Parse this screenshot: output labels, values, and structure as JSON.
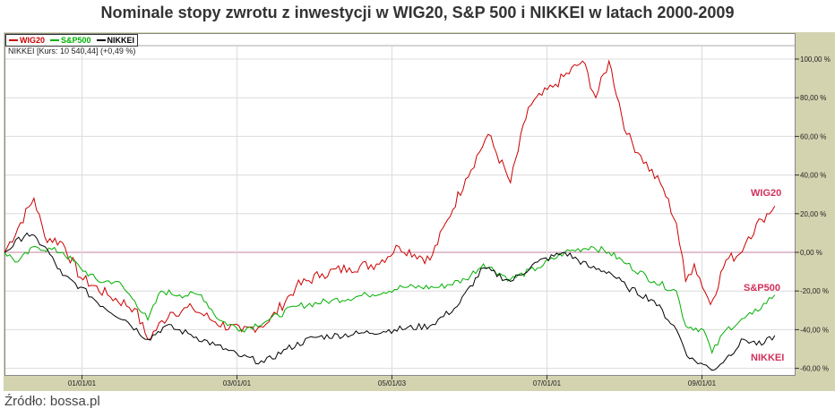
{
  "title": "Nominale stopy zwrotu z inwestycji w WIG20, S&P 500 i NIKKEI w latach 2000-2009",
  "info": "NIKKEI [Kurs: 10 540,44] (+0,49 %)",
  "source": "Źródło: bossa.pl",
  "colors": {
    "WIG20": "#cc0000",
    "S&P500": "#00b000",
    "NIKKEI": "#000000",
    "label": "#d0305a",
    "zero": "#c080a0"
  },
  "chart_data": {
    "type": "line",
    "title": "Nominale stopy zwrotu z inwestycji w WIG20, S&P 500 i NIKKEI w latach 2000-2009",
    "xlabel": "",
    "ylabel": "",
    "ylim": [
      -62,
      106
    ],
    "xlim": [
      2000.0,
      2010.2
    ],
    "yticks": [
      100,
      80,
      60,
      40,
      20,
      0,
      -20,
      -40,
      -60
    ],
    "ytick_labels": [
      "100,00 %",
      "80,00 %",
      "60,00 %",
      "40,00 %",
      "20,00 %",
      "0,00 %",
      "-20,00 %",
      "-40,00 %",
      "-60,00 %"
    ],
    "xticks": [
      2001.0,
      2003.0,
      2005.0,
      2007.0,
      2009.0
    ],
    "xtick_labels": [
      "01/01/01",
      "03/01/01",
      "05/01/03",
      "07/01/01",
      "09/01/01"
    ],
    "legend": [
      "WIG20",
      "S&P500",
      "NIKKEI"
    ],
    "legend_placement": "top-left",
    "grid": true,
    "series": [
      {
        "name": "WIG20",
        "label": "WIG20",
        "x": [
          2000.0,
          2000.38,
          2000.52,
          2000.75,
          2000.98,
          2001.33,
          2001.68,
          2001.85,
          2002.14,
          2002.43,
          2002.72,
          2003.06,
          2003.41,
          2003.76,
          2004.1,
          2004.45,
          2004.8,
          2005.09,
          2005.49,
          2005.72,
          2005.95,
          2006.24,
          2006.53,
          2006.76,
          2007.11,
          2007.46,
          2007.63,
          2007.8,
          2008.03,
          2008.21,
          2008.5,
          2008.67,
          2008.79,
          2008.9,
          2009.11,
          2009.31,
          2009.48,
          2009.6,
          2009.77,
          2009.94
        ],
        "y": [
          0,
          28,
          8,
          5,
          -13,
          -22,
          -29,
          -45,
          -31,
          -29,
          -36,
          -41,
          -36,
          -18,
          -11,
          -8,
          -6,
          3,
          -4,
          17,
          38,
          61,
          36,
          75,
          87,
          99,
          80,
          99,
          61,
          50,
          33,
          15,
          -15,
          -6,
          -27,
          -4,
          -1,
          8,
          17,
          24
        ]
      },
      {
        "name": "S&P500",
        "label": "S&P500",
        "x": [
          2000.0,
          2000.17,
          2000.4,
          2000.75,
          2000.98,
          2001.21,
          2001.45,
          2001.68,
          2001.85,
          2002.02,
          2002.26,
          2002.54,
          2002.77,
          2003.06,
          2003.41,
          2003.76,
          2004.22,
          2004.68,
          2005.14,
          2005.61,
          2005.95,
          2006.18,
          2006.53,
          2006.88,
          2007.23,
          2007.57,
          2007.8,
          2008.03,
          2008.38,
          2008.67,
          2008.79,
          2009.02,
          2009.13,
          2009.31,
          2009.65,
          2009.94
        ],
        "y": [
          0,
          -5,
          3,
          0,
          -8,
          -15,
          -15,
          -25,
          -35,
          -20,
          -22,
          -22,
          -35,
          -40,
          -35,
          -28,
          -25,
          -22,
          -18,
          -18,
          -14,
          -6,
          -14,
          -8,
          0,
          3,
          0,
          -6,
          -15,
          -20,
          -38,
          -40,
          -52,
          -40,
          -32,
          -22
        ]
      },
      {
        "name": "NIKKEI",
        "label": "NIKKEI",
        "x": [
          2000.0,
          2000.29,
          2000.52,
          2000.75,
          2000.98,
          2001.27,
          2001.56,
          2001.85,
          2002.08,
          2002.37,
          2002.72,
          2003.06,
          2003.35,
          2003.64,
          2003.99,
          2004.57,
          2005.03,
          2005.49,
          2005.84,
          2006.18,
          2006.53,
          2006.88,
          2007.23,
          2007.57,
          2007.8,
          2008.03,
          2008.38,
          2008.67,
          2008.84,
          2009.02,
          2009.13,
          2009.31,
          2009.54,
          2009.77,
          2009.94
        ],
        "y": [
          0,
          10,
          3,
          -12,
          -18,
          -28,
          -35,
          -45,
          -38,
          -42,
          -48,
          -54,
          -57,
          -50,
          -44,
          -42,
          -40,
          -38,
          -28,
          -8,
          -15,
          -5,
          0,
          -8,
          -10,
          -18,
          -25,
          -40,
          -55,
          -58,
          -61,
          -55,
          -45,
          -48,
          -43
        ]
      }
    ]
  }
}
